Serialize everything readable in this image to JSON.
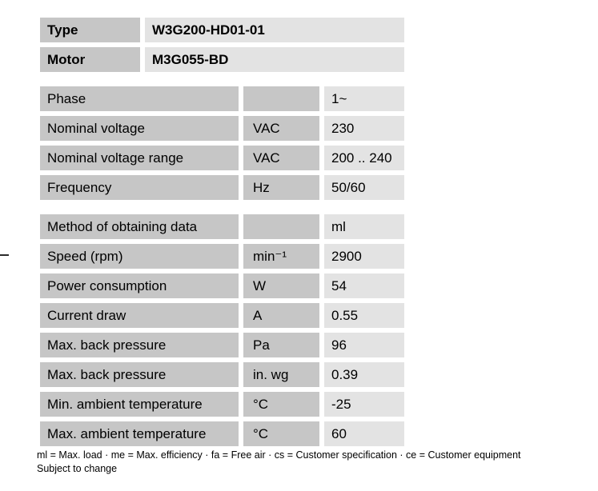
{
  "identity": {
    "rows": [
      {
        "label": "Type",
        "value": "W3G200-HD01-01"
      },
      {
        "label": "Motor",
        "value": "M3G055-BD"
      }
    ]
  },
  "sections": [
    {
      "rows": [
        {
          "label": "Phase",
          "unit": "",
          "value": "1~"
        },
        {
          "label": "Nominal voltage",
          "unit": "VAC",
          "value": "230"
        },
        {
          "label": "Nominal voltage range",
          "unit": "VAC",
          "value": "200 .. 240"
        },
        {
          "label": "Frequency",
          "unit": "Hz",
          "value": "50/60"
        }
      ]
    },
    {
      "rows": [
        {
          "label": "Method of obtaining data",
          "unit": "",
          "value": "ml"
        },
        {
          "label": "Speed (rpm)",
          "unit": "min⁻¹",
          "value": "2900"
        },
        {
          "label": "Power consumption",
          "unit": "W",
          "value": "54"
        },
        {
          "label": "Current draw",
          "unit": "A",
          "value": "0.55"
        },
        {
          "label": "Max. back pressure",
          "unit": "Pa",
          "value": "96"
        },
        {
          "label": "Max. back pressure",
          "unit": "in. wg",
          "value": "0.39"
        },
        {
          "label": "Min. ambient temperature",
          "unit": "°C",
          "value": "-25"
        },
        {
          "label": "Max. ambient temperature",
          "unit": "°C",
          "value": "60"
        }
      ]
    }
  ],
  "footer": {
    "legend": "ml = Max. load · me = Max. efficiency · fa = Free air · cs = Customer specification · ce = Customer equipment",
    "note": "Subject to change"
  },
  "colors": {
    "label_cell_bg": "#c6c6c6",
    "value_cell_bg": "#e3e3e3",
    "text": "#000000"
  }
}
